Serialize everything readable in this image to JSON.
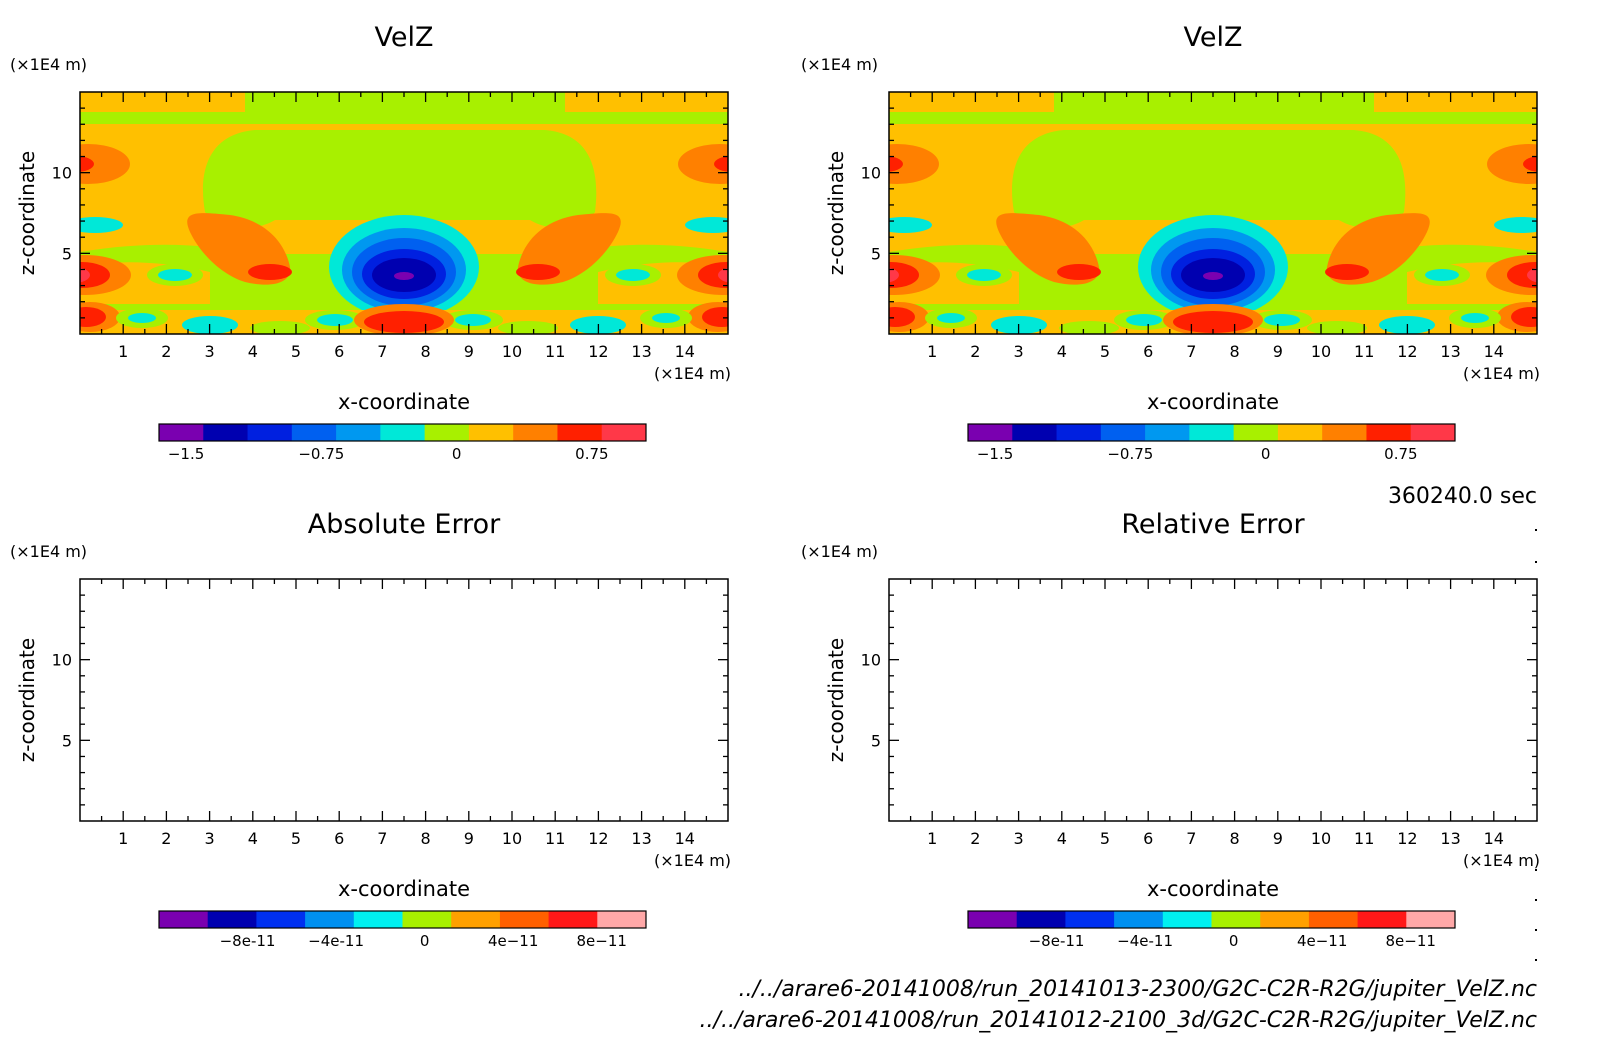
{
  "time_label": "360240.0 sec",
  "files": [
    "../../arare6-20141008/run_20141013-2300/G2C-C2R-R2G/jupiter_VelZ.nc",
    "../../arare6-20141008/run_20141012-2100_3d/G2C-C2R-R2G/jupiter_VelZ.nc"
  ],
  "chart_data": [
    {
      "type": "heatmap",
      "title": "VelZ",
      "xlabel": "x-coordinate",
      "ylabel": "z-coordinate",
      "x_unit": "(×1E4 m)",
      "y_unit": "(×1E4 m)",
      "xlim": [
        0,
        15
      ],
      "ylim": [
        0,
        15
      ],
      "x_ticks": [
        1,
        2,
        3,
        4,
        5,
        6,
        7,
        8,
        9,
        10,
        11,
        12,
        13,
        14
      ],
      "y_ticks": [
        5,
        10
      ],
      "colorbar": {
        "levels": [
          -1.65,
          -1.5,
          -1.35,
          -1.2,
          -1.05,
          -0.9,
          -0.75,
          -0.6,
          -0.45,
          -0.3,
          -0.15,
          0,
          0.15,
          0.3,
          0.45,
          0.6,
          0.75,
          0.9,
          1.05
        ],
        "tick_values": [
          -1.5,
          -0.75,
          0,
          0.75
        ],
        "tick_labels": [
          "-1.5",
          "-0.75",
          "0",
          "0.75"
        ],
        "colors": [
          "#7a00b0",
          "#0000b0",
          "#0020e0",
          "#0060f0",
          "#0098f0",
          "#00e8d8",
          "#a8f000",
          "#ffc000",
          "#ff8000",
          "#ff2000",
          "#ff3848"
        ]
      }
    },
    {
      "type": "heatmap",
      "title": "VelZ",
      "xlabel": "x-coordinate",
      "ylabel": "z-coordinate",
      "x_unit": "(×1E4 m)",
      "y_unit": "(×1E4 m)",
      "xlim": [
        0,
        15
      ],
      "ylim": [
        0,
        15
      ],
      "x_ticks": [
        1,
        2,
        3,
        4,
        5,
        6,
        7,
        8,
        9,
        10,
        11,
        12,
        13,
        14
      ],
      "y_ticks": [
        5,
        10
      ],
      "colorbar": {
        "levels": [
          -1.65,
          -1.5,
          -1.35,
          -1.2,
          -1.05,
          -0.9,
          -0.75,
          -0.6,
          -0.45,
          -0.3,
          -0.15,
          0,
          0.15,
          0.3,
          0.45,
          0.6,
          0.75,
          0.9,
          1.05
        ],
        "tick_values": [
          -1.5,
          -0.75,
          0,
          0.75
        ],
        "tick_labels": [
          "-1.5",
          "-0.75",
          "0",
          "0.75"
        ],
        "colors": [
          "#7a00b0",
          "#0000b0",
          "#0020e0",
          "#0060f0",
          "#0098f0",
          "#00e8d8",
          "#a8f000",
          "#ffc000",
          "#ff8000",
          "#ff2000",
          "#ff3848"
        ]
      }
    },
    {
      "type": "heatmap",
      "title": "Absolute Error",
      "xlabel": "x-coordinate",
      "ylabel": "z-coordinate",
      "x_unit": "(×1E4 m)",
      "y_unit": "(×1E4 m)",
      "xlim": [
        0,
        15
      ],
      "ylim": [
        0,
        15
      ],
      "x_ticks": [
        1,
        2,
        3,
        4,
        5,
        6,
        7,
        8,
        9,
        10,
        11,
        12,
        13,
        14
      ],
      "y_ticks": [
        5,
        10
      ],
      "colorbar": {
        "levels": [
          -1.2e-10,
          -1e-10,
          -8e-11,
          -6e-11,
          -4e-11,
          -2e-11,
          0,
          2e-11,
          4e-11,
          6e-11,
          8e-11,
          1e-10
        ],
        "tick_values": [
          -8e-11,
          -4e-11,
          0,
          4e-11,
          8e-11
        ],
        "tick_labels": [
          "-8e-11",
          "-4e-11",
          "0",
          "4e-11",
          "8e-11"
        ],
        "colors": [
          "#7a00b0",
          "#0000b0",
          "#0030f0",
          "#0090f0",
          "#00f0f0",
          "#a8f000",
          "#ffa000",
          "#ff6000",
          "#ff1818",
          "#ffa8a8"
        ]
      }
    },
    {
      "type": "heatmap",
      "title": "Relative Error",
      "xlabel": "x-coordinate",
      "ylabel": "z-coordinate",
      "x_unit": "(×1E4 m)",
      "y_unit": "(×1E4 m)",
      "xlim": [
        0,
        15
      ],
      "ylim": [
        0,
        15
      ],
      "x_ticks": [
        1,
        2,
        3,
        4,
        5,
        6,
        7,
        8,
        9,
        10,
        11,
        12,
        13,
        14
      ],
      "y_ticks": [
        5,
        10
      ],
      "colorbar": {
        "levels": [
          -1.2e-10,
          -1e-10,
          -8e-11,
          -6e-11,
          -4e-11,
          -2e-11,
          0,
          2e-11,
          4e-11,
          6e-11,
          8e-11,
          1e-10
        ],
        "tick_values": [
          -8e-11,
          -4e-11,
          0,
          4e-11,
          8e-11
        ],
        "tick_labels": [
          "-8e-11",
          "-4e-11",
          "0",
          "4e-11",
          "8e-11"
        ],
        "colors": [
          "#7a00b0",
          "#0000b0",
          "#0030f0",
          "#0090f0",
          "#00f0f0",
          "#a8f000",
          "#ffa000",
          "#ff6000",
          "#ff1818",
          "#ffa8a8"
        ]
      }
    }
  ]
}
